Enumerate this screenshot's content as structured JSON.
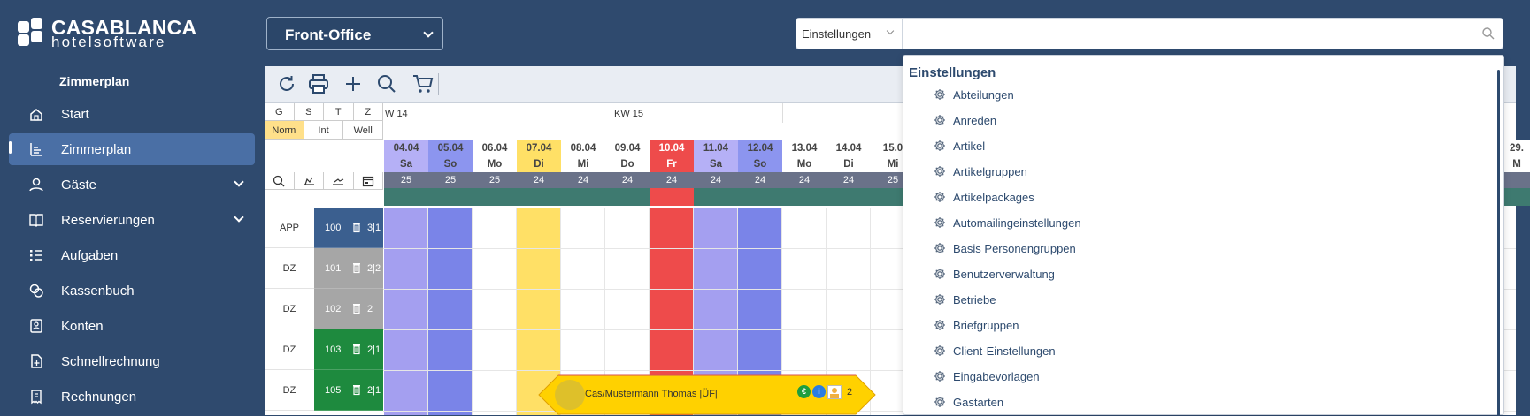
{
  "app": {
    "logo_line1": "CASABLANCA",
    "logo_line2": "hotelsoftware",
    "module_select": "Front-Office"
  },
  "search": {
    "category": "Einstellungen",
    "value": "",
    "placeholder": ""
  },
  "sidebar": {
    "section_title": "Zimmerplan",
    "items": [
      {
        "label": "Start",
        "icon": "home-icon"
      },
      {
        "label": "Zimmerplan",
        "icon": "chart-icon",
        "active": true
      },
      {
        "label": "Gäste",
        "icon": "user-icon",
        "expandable": true
      },
      {
        "label": "Reservierungen",
        "icon": "book-icon",
        "expandable": true
      },
      {
        "label": "Aufgaben",
        "icon": "tasks-icon"
      },
      {
        "label": "Kassenbuch",
        "icon": "coins-icon"
      },
      {
        "label": "Konten",
        "icon": "account-icon"
      },
      {
        "label": "Schnellrechnung",
        "icon": "quick-invoice-icon"
      },
      {
        "label": "Rechnungen",
        "icon": "invoice-icon"
      }
    ]
  },
  "toolbar": {
    "buttons": [
      "refresh-icon",
      "print-icon",
      "plus-icon",
      "search-icon",
      "cart-icon"
    ]
  },
  "plan": {
    "filter_row1": [
      "G",
      "S",
      "T",
      "Z"
    ],
    "filter_row2": [
      "Norm",
      "Int",
      "Well"
    ],
    "weeks": [
      "W 14",
      "KW 15"
    ],
    "days": [
      {
        "date": "04.04",
        "day": "Sa",
        "count": "25",
        "type": "sat"
      },
      {
        "date": "05.04",
        "day": "So",
        "count": "25",
        "type": "sun"
      },
      {
        "date": "06.04",
        "day": "Mo",
        "count": "25",
        "type": "normal"
      },
      {
        "date": "07.04",
        "day": "Di",
        "count": "24",
        "type": "today"
      },
      {
        "date": "08.04",
        "day": "Mi",
        "count": "24",
        "type": "normal"
      },
      {
        "date": "09.04",
        "day": "Do",
        "count": "24",
        "type": "normal"
      },
      {
        "date": "10.04",
        "day": "Fr",
        "count": "24",
        "type": "holiday"
      },
      {
        "date": "11.04",
        "day": "Sa",
        "count": "24",
        "type": "sat"
      },
      {
        "date": "12.04",
        "day": "So",
        "count": "24",
        "type": "sun"
      },
      {
        "date": "13.04",
        "day": "Mo",
        "count": "24",
        "type": "normal"
      },
      {
        "date": "14.04",
        "day": "Di",
        "count": "24",
        "type": "normal"
      },
      {
        "date": "15.0",
        "day": "Mi",
        "count": "25",
        "type": "normal"
      }
    ],
    "edge_date": "29.",
    "edge_day": "M",
    "rooms": [
      {
        "type": "APP",
        "number": "100",
        "cap": "3|1",
        "color": "#3b5f8f"
      },
      {
        "type": "DZ",
        "number": "101",
        "cap": "2|2",
        "color": "#a6a6a6"
      },
      {
        "type": "DZ",
        "number": "102",
        "cap": "2",
        "color": "#a6a6a6"
      },
      {
        "type": "DZ",
        "number": "103",
        "cap": "2|1",
        "color": "#1e8a3e"
      },
      {
        "type": "DZ",
        "number": "105",
        "cap": "2|1",
        "color": "#1e8a3e"
      }
    ],
    "booking": {
      "label": "Cas/Mustermann Thomas |ÜF|",
      "euro": "€",
      "info": "i",
      "persons": "2"
    }
  },
  "dropdown": {
    "title": "Einstellungen",
    "items": [
      "Abteilungen",
      "Anreden",
      "Artikel",
      "Artikelgruppen",
      "Artikelpackages",
      "Automailingeinstellungen",
      "Basis Personengruppen",
      "Benutzerverwaltung",
      "Betriebe",
      "Briefgruppen",
      "Client-Einstellungen",
      "Eingabevorlagen",
      "Gastarten"
    ]
  },
  "colors": {
    "sidebar_bg": "#2f4a6e",
    "active_item": "#4a6fa5",
    "sat": "#a49ff0",
    "sun": "#7a84e8",
    "today": "#ffe066",
    "holiday": "#ee4b4b",
    "booking": "#ffd100"
  }
}
